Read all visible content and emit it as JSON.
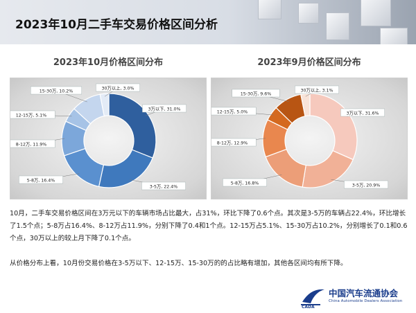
{
  "header": {
    "title": "2023年10月二手车交易价格区间分析"
  },
  "chart_data": [
    {
      "type": "pie",
      "style": "donut",
      "title": "2023年10月价格区间分布",
      "categories": [
        "3万以下",
        "3-5万",
        "5-8万",
        "8-12万",
        "12-15万",
        "15-30万",
        "30万以上"
      ],
      "values": [
        31.0,
        22.4,
        16.4,
        11.9,
        5.1,
        10.2,
        3.0
      ],
      "labels": [
        "3万以下, 31.0%",
        "3-5万, 22.4%",
        "5-8万, 16.4%",
        "8-12万, 11.9%",
        "12-15万, 5.1%",
        "15-30万, 10.2%",
        "30万以上, 3.0%"
      ],
      "colors": [
        "#2f5f9e",
        "#3f79bd",
        "#5a90cf",
        "#7ca7da",
        "#a6c3e6",
        "#c4d6ee",
        "#e3ebf6"
      ]
    },
    {
      "type": "pie",
      "style": "donut",
      "title": "2023年9月价格区间分布",
      "categories": [
        "3万以下",
        "3-5万",
        "5-8万",
        "8-12万",
        "12-15万",
        "15-30万",
        "30万以上"
      ],
      "values": [
        31.6,
        20.9,
        16.8,
        12.9,
        5.0,
        9.6,
        3.1
      ],
      "labels": [
        "3万以下, 31.6%",
        "3-5万, 20.9%",
        "5-8万, 16.8%",
        "8-12万, 12.9%",
        "12-15万, 5.0%",
        "15-30万, 9.6%",
        "30万以上, 3.1%"
      ],
      "colors": [
        "#f6c9bd",
        "#f1b197",
        "#ec9e78",
        "#e9874e",
        "#d4691f",
        "#b85513",
        "#f8e3d8"
      ]
    }
  ],
  "text": {
    "p1": "10月，二手车交易价格区间在3万元以下的车辆市场占比最大，占31%，环比下降了0.6个点。其次是3-5万的车辆占22.4%，环比增长了1.5个点；5-8万占16.4%、8-12万占11.9%，分别下降了0.4和1个点。12-15万占5.1%、15-30万占10.2%，分别增长了0.1和0.6个点，30万以上的较上月下降了0.1个点。",
    "p2": "从价格分布上看，10月份交易价格在3-5万以下、12-15万、15-30万的的占比略有增加，其他各区间均有所下降。"
  },
  "logo": {
    "name": "中国汽车流通协会",
    "en": "China Automobile Dealers Association"
  }
}
